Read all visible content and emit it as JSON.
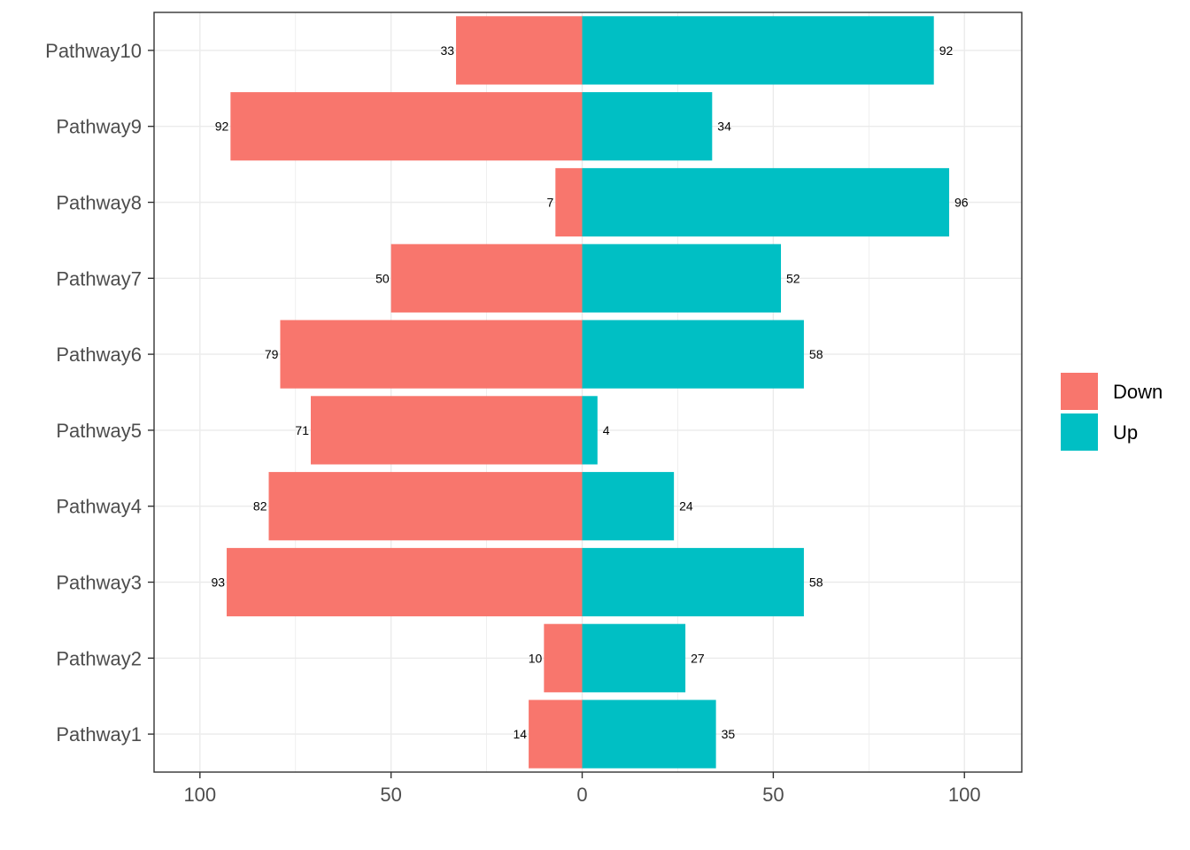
{
  "chart_data": {
    "type": "bar",
    "orientation": "horizontal",
    "diverging": true,
    "categories": [
      "Pathway10",
      "Pathway9",
      "Pathway8",
      "Pathway7",
      "Pathway6",
      "Pathway5",
      "Pathway4",
      "Pathway3",
      "Pathway2",
      "Pathway1"
    ],
    "series": [
      {
        "name": "Down",
        "color": "#F8766D",
        "direction": "left",
        "values": [
          33,
          92,
          7,
          50,
          79,
          71,
          82,
          93,
          10,
          14
        ]
      },
      {
        "name": "Up",
        "color": "#00BFC4",
        "direction": "right",
        "values": [
          92,
          34,
          96,
          52,
          58,
          4,
          24,
          58,
          27,
          35
        ]
      }
    ],
    "x_ticks": [
      "100",
      "50",
      "0",
      "50",
      "100"
    ],
    "x_tick_values": [
      -100,
      -50,
      0,
      50,
      100
    ],
    "xlim": [
      -112,
      115
    ],
    "title": "",
    "xlabel": "",
    "ylabel": "",
    "grid": true,
    "legend_position": "right",
    "colors": {
      "panel_border": "#333333",
      "grid": "#EBEBEB",
      "tick_text": "#4D4D4D"
    }
  }
}
